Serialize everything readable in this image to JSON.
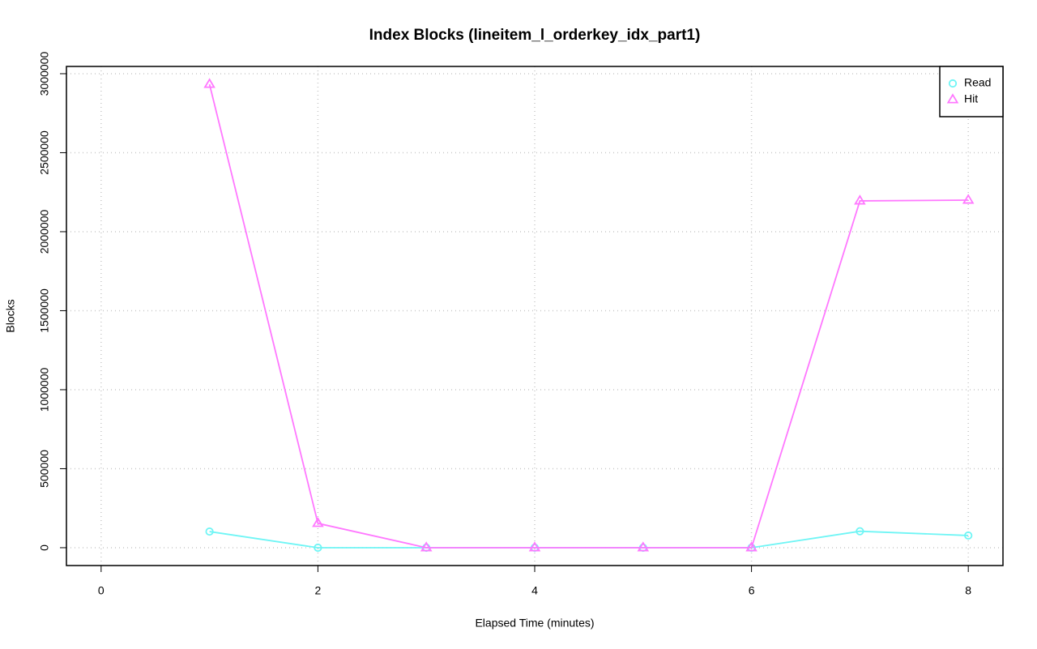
{
  "chart_data": {
    "type": "line",
    "title": "Index Blocks (lineitem_l_orderkey_idx_part1)",
    "x_label": "Elapsed Time (minutes)",
    "y_label": "Blocks",
    "x": [
      1,
      2,
      3,
      4,
      5,
      6,
      7,
      8
    ],
    "series": [
      {
        "name": "Read",
        "color": "#6ff5f5",
        "marker": "circle",
        "values": [
          102000,
          0,
          0,
          0,
          0,
          0,
          104000,
          77000
        ]
      },
      {
        "name": "Hit",
        "color": "#ff78ff",
        "marker": "triangle",
        "values": [
          2933000,
          154000,
          0,
          0,
          0,
          0,
          2195000,
          2200000
        ]
      }
    ],
    "xlim": [
      -0.32,
      8.32
    ],
    "xticks": [
      0,
      2,
      4,
      6,
      8
    ],
    "ylim": [
      -113000,
      3046000
    ],
    "yticks": [
      0,
      500000,
      1000000,
      1500000,
      2000000,
      2500000,
      3000000
    ],
    "grid": true,
    "legend_position": "top-right"
  }
}
